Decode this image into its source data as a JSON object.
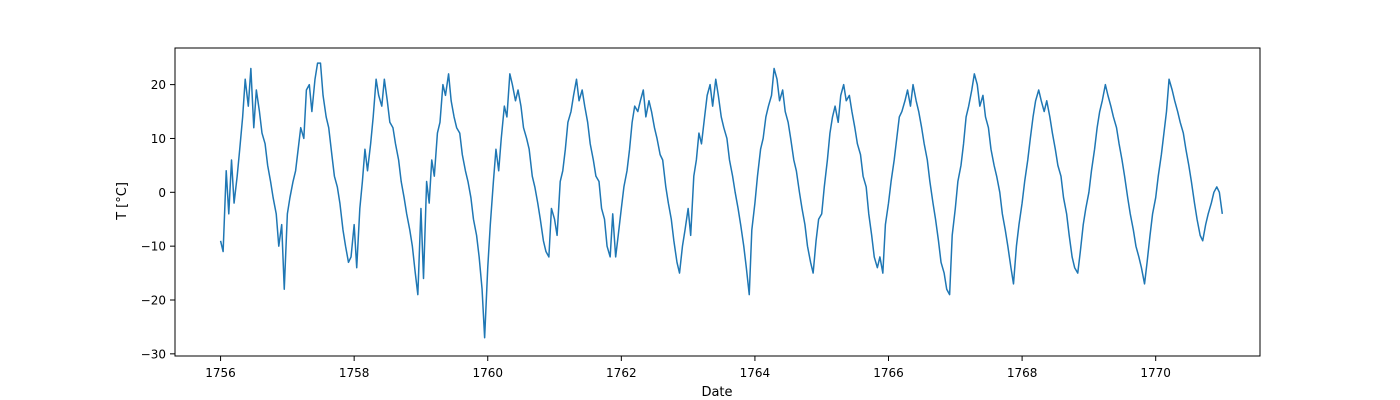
{
  "chart_data": {
    "type": "line",
    "title": "",
    "xlabel": "Date",
    "ylabel": "T [°C]",
    "x_axis_kind": "date",
    "xlim": [
      "1755-04-27",
      "1771-07-25"
    ],
    "ylim": [
      -30.4,
      26.8
    ],
    "x_ticks": [
      "1756",
      "1758",
      "1760",
      "1762",
      "1764",
      "1766",
      "1768",
      "1770"
    ],
    "y_ticks": [
      "−30",
      "−20",
      "−10",
      "0",
      "10",
      "20"
    ],
    "grid": false,
    "legend": "none",
    "series": [
      {
        "color": "#1f77b4",
        "line_width": 1.5,
        "x": [
          "1756-01-01",
          "1756-01-15",
          "1756-02-01",
          "1756-02-15",
          "1756-03-01",
          "1756-03-15",
          "1756-04-01",
          "1756-04-15",
          "1756-05-01",
          "1756-05-15",
          "1756-06-01",
          "1756-06-15",
          "1756-07-01",
          "1756-07-15",
          "1756-08-01",
          "1756-08-15",
          "1756-09-01",
          "1756-09-15",
          "1756-10-01",
          "1756-10-15",
          "1756-11-01",
          "1756-11-15",
          "1756-12-01",
          "1756-12-15",
          "1757-01-01",
          "1757-01-15",
          "1757-02-01",
          "1757-02-15",
          "1757-03-01",
          "1757-03-15",
          "1757-04-01",
          "1757-04-15",
          "1757-05-01",
          "1757-05-15",
          "1757-06-01",
          "1757-06-15",
          "1757-07-01",
          "1757-07-15",
          "1757-08-01",
          "1757-08-15",
          "1757-09-01",
          "1757-09-15",
          "1757-10-01",
          "1757-10-15",
          "1757-11-01",
          "1757-11-15",
          "1757-12-01",
          "1757-12-15",
          "1758-01-01",
          "1758-01-15",
          "1758-02-01",
          "1758-02-15",
          "1758-03-01",
          "1758-03-15",
          "1758-04-01",
          "1758-04-15",
          "1758-05-01",
          "1758-05-15",
          "1758-06-01",
          "1758-06-15",
          "1758-07-01",
          "1758-07-15",
          "1758-08-01",
          "1758-08-15",
          "1758-09-01",
          "1758-09-15",
          "1758-10-01",
          "1758-10-15",
          "1758-11-01",
          "1758-11-15",
          "1758-12-01",
          "1758-12-15",
          "1759-01-01",
          "1759-01-15",
          "1759-02-01",
          "1759-02-15",
          "1759-03-01",
          "1759-03-15",
          "1759-04-01",
          "1759-04-15",
          "1759-05-01",
          "1759-05-15",
          "1759-06-01",
          "1759-06-15",
          "1759-07-01",
          "1759-07-15",
          "1759-08-01",
          "1759-08-15",
          "1759-09-01",
          "1759-09-15",
          "1759-10-01",
          "1759-10-15",
          "1759-11-01",
          "1759-11-15",
          "1759-12-01",
          "1759-12-15",
          "1760-01-01",
          "1760-01-15",
          "1760-02-01",
          "1760-02-15",
          "1760-03-01",
          "1760-03-15",
          "1760-04-01",
          "1760-04-15",
          "1760-05-01",
          "1760-05-15",
          "1760-06-01",
          "1760-06-15",
          "1760-07-01",
          "1760-07-15",
          "1760-08-01",
          "1760-08-15",
          "1760-09-01",
          "1760-09-15",
          "1760-10-01",
          "1760-10-15",
          "1760-11-01",
          "1760-11-15",
          "1760-12-01",
          "1760-12-15",
          "1761-01-01",
          "1761-01-15",
          "1761-02-01",
          "1761-02-15",
          "1761-03-01",
          "1761-03-15",
          "1761-04-01",
          "1761-04-15",
          "1761-05-01",
          "1761-05-15",
          "1761-06-01",
          "1761-06-15",
          "1761-07-01",
          "1761-07-15",
          "1761-08-01",
          "1761-08-15",
          "1761-09-01",
          "1761-09-15",
          "1761-10-01",
          "1761-10-15",
          "1761-11-01",
          "1761-11-15",
          "1761-12-01",
          "1761-12-15",
          "1762-01-01",
          "1762-01-15",
          "1762-02-01",
          "1762-02-15",
          "1762-03-01",
          "1762-03-15",
          "1762-04-01",
          "1762-04-15",
          "1762-05-01",
          "1762-05-15",
          "1762-06-01",
          "1762-06-15",
          "1762-07-01",
          "1762-07-15",
          "1762-08-01",
          "1762-08-15",
          "1762-09-01",
          "1762-09-15",
          "1762-10-01",
          "1762-10-15",
          "1762-11-01",
          "1762-11-15",
          "1762-12-01",
          "1762-12-15",
          "1763-01-01",
          "1763-01-15",
          "1763-02-01",
          "1763-02-15",
          "1763-03-01",
          "1763-03-15",
          "1763-04-01",
          "1763-04-15",
          "1763-05-01",
          "1763-05-15",
          "1763-06-01",
          "1763-06-15",
          "1763-07-01",
          "1763-07-15",
          "1763-08-01",
          "1763-08-15",
          "1763-09-01",
          "1763-09-15",
          "1763-10-01",
          "1763-10-15",
          "1763-11-01",
          "1763-11-15",
          "1763-12-01",
          "1763-12-15",
          "1764-01-01",
          "1764-01-15",
          "1764-02-01",
          "1764-02-15",
          "1764-03-01",
          "1764-03-15",
          "1764-04-01",
          "1764-04-15",
          "1764-05-01",
          "1764-05-15",
          "1764-06-01",
          "1764-06-15",
          "1764-07-01",
          "1764-07-15",
          "1764-08-01",
          "1764-08-15",
          "1764-09-01",
          "1764-09-15",
          "1764-10-01",
          "1764-10-15",
          "1764-11-01",
          "1764-11-15",
          "1764-12-01",
          "1764-12-15",
          "1765-01-01",
          "1765-01-15",
          "1765-02-01",
          "1765-02-15",
          "1765-03-01",
          "1765-03-15",
          "1765-04-01",
          "1765-04-15",
          "1765-05-01",
          "1765-05-15",
          "1765-06-01",
          "1765-06-15",
          "1765-07-01",
          "1765-07-15",
          "1765-08-01",
          "1765-08-15",
          "1765-09-01",
          "1765-09-15",
          "1765-10-01",
          "1765-10-15",
          "1765-11-01",
          "1765-11-15",
          "1765-12-01",
          "1765-12-15",
          "1766-01-01",
          "1766-01-15",
          "1766-02-01",
          "1766-02-15",
          "1766-03-01",
          "1766-03-15",
          "1766-04-01",
          "1766-04-15",
          "1766-05-01",
          "1766-05-15",
          "1766-06-01",
          "1766-06-15",
          "1766-07-01",
          "1766-07-15",
          "1766-08-01",
          "1766-08-15",
          "1766-09-01",
          "1766-09-15",
          "1766-10-01",
          "1766-10-15",
          "1766-11-01",
          "1766-11-15",
          "1766-12-01",
          "1766-12-15",
          "1767-01-01",
          "1767-01-15",
          "1767-02-01",
          "1767-02-15",
          "1767-03-01",
          "1767-03-15",
          "1767-04-01",
          "1767-04-15",
          "1767-05-01",
          "1767-05-15",
          "1767-06-01",
          "1767-06-15",
          "1767-07-01",
          "1767-07-15",
          "1767-08-01",
          "1767-08-15",
          "1767-09-01",
          "1767-09-15",
          "1767-10-01",
          "1767-10-15",
          "1767-11-01",
          "1767-11-15",
          "1767-12-01",
          "1767-12-15",
          "1768-01-01",
          "1768-01-15",
          "1768-02-01",
          "1768-02-15",
          "1768-03-01",
          "1768-03-15",
          "1768-04-01",
          "1768-04-15",
          "1768-05-01",
          "1768-05-15",
          "1768-06-01",
          "1768-06-15",
          "1768-07-01",
          "1768-07-15",
          "1768-08-01",
          "1768-08-15",
          "1768-09-01",
          "1768-09-15",
          "1768-10-01",
          "1768-10-15",
          "1768-11-01",
          "1768-11-15",
          "1768-12-01",
          "1768-12-15",
          "1769-01-01",
          "1769-01-15",
          "1769-02-01",
          "1769-02-15",
          "1769-03-01",
          "1769-03-15",
          "1769-04-01",
          "1769-04-15",
          "1769-05-01",
          "1769-05-15",
          "1769-06-01",
          "1769-06-15",
          "1769-07-01",
          "1769-07-15",
          "1769-08-01",
          "1769-08-15",
          "1769-09-01",
          "1769-09-15",
          "1769-10-01",
          "1769-10-15",
          "1769-11-01",
          "1769-11-15",
          "1769-12-01",
          "1769-12-15",
          "1770-01-01",
          "1770-01-15",
          "1770-02-01",
          "1770-02-15",
          "1770-03-01",
          "1770-03-15",
          "1770-04-01",
          "1770-04-15",
          "1770-05-01",
          "1770-05-15",
          "1770-06-01",
          "1770-06-15",
          "1770-07-01",
          "1770-07-15",
          "1770-08-01",
          "1770-08-15",
          "1770-09-01",
          "1770-09-15",
          "1770-10-01",
          "1770-10-15",
          "1770-11-01",
          "1770-11-15",
          "1770-12-01",
          "1770-12-15",
          "1770-12-31"
        ],
        "y": [
          -9,
          -11,
          4,
          -4,
          6,
          -2,
          3,
          8,
          14,
          21,
          16,
          23,
          12,
          19,
          15,
          11,
          9,
          5,
          2,
          -1,
          -4,
          -10,
          -6,
          -18,
          -4,
          -1,
          2,
          4,
          8,
          12,
          10,
          19,
          20,
          15,
          21,
          24,
          24,
          18,
          14,
          12,
          7,
          3,
          1,
          -2,
          -7,
          -10,
          -13,
          -12,
          -6,
          -14,
          -3,
          2,
          8,
          4,
          9,
          14,
          21,
          18,
          16,
          21,
          17,
          13,
          12,
          9,
          6,
          2,
          -1,
          -4,
          -7,
          -10,
          -15,
          -19,
          -3,
          -16,
          2,
          -2,
          6,
          3,
          11,
          13,
          20,
          18,
          22,
          17,
          14,
          12,
          11,
          7,
          4,
          2,
          -1,
          -5,
          -8,
          -12,
          -18,
          -27,
          -14,
          -6,
          2,
          8,
          4,
          10,
          16,
          14,
          22,
          20,
          17,
          19,
          16,
          12,
          10,
          8,
          3,
          1,
          -2,
          -5,
          -9,
          -11,
          -12,
          -3,
          -5,
          -8,
          2,
          4,
          8,
          13,
          15,
          18,
          21,
          17,
          19,
          16,
          13,
          9,
          6,
          3,
          2,
          -3,
          -5,
          -10,
          -12,
          -4,
          -12,
          -8,
          -3,
          1,
          4,
          8,
          13,
          16,
          15,
          17,
          19,
          14,
          17,
          15,
          12,
          10,
          7,
          6,
          1,
          -2,
          -5,
          -9,
          -13,
          -15,
          -10,
          -7,
          -3,
          -8,
          3,
          6,
          11,
          9,
          14,
          18,
          20,
          16,
          21,
          18,
          14,
          12,
          10,
          6,
          3,
          0,
          -3,
          -6,
          -10,
          -14,
          -19,
          -7,
          -2,
          3,
          8,
          10,
          14,
          16,
          18,
          23,
          21,
          17,
          19,
          15,
          13,
          10,
          6,
          4,
          0,
          -3,
          -6,
          -10,
          -13,
          -15,
          -9,
          -5,
          -4,
          1,
          6,
          11,
          14,
          16,
          13,
          18,
          20,
          17,
          18,
          15,
          12,
          9,
          7,
          3,
          1,
          -4,
          -8,
          -12,
          -14,
          -12,
          -15,
          -6,
          -2,
          2,
          6,
          10,
          14,
          15,
          17,
          19,
          16,
          20,
          17,
          15,
          12,
          9,
          6,
          2,
          -2,
          -5,
          -9,
          -13,
          -15,
          -18,
          -19,
          -8,
          -3,
          2,
          5,
          9,
          14,
          16,
          19,
          22,
          20,
          16,
          18,
          14,
          12,
          8,
          5,
          3,
          0,
          -4,
          -7,
          -10,
          -14,
          -17,
          -10,
          -6,
          -2,
          2,
          6,
          10,
          14,
          17,
          19,
          17,
          15,
          17,
          14,
          11,
          8,
          5,
          3,
          -1,
          -4,
          -8,
          -12,
          -14,
          -15,
          -11,
          -6,
          -3,
          0,
          4,
          8,
          12,
          15,
          17,
          20,
          18,
          16,
          14,
          12,
          9,
          6,
          3,
          -1,
          -4,
          -7,
          -10,
          -12,
          -14,
          -17,
          -13,
          -8,
          -4,
          -1,
          3,
          7,
          11,
          15,
          21,
          19,
          17,
          15,
          13,
          11,
          8,
          5,
          2,
          -2,
          -5,
          -8,
          -9,
          -6,
          -4,
          -2,
          0,
          1,
          0,
          -4
        ]
      }
    ]
  }
}
